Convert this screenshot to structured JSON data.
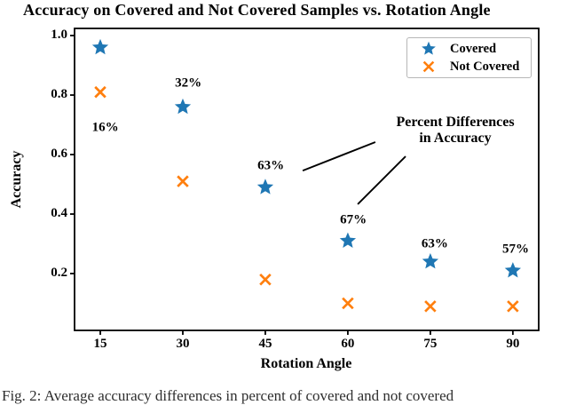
{
  "figure": {
    "title": "Accuracy on Covered and Not Covered Samples vs. Rotation Angle",
    "caption_fragment": "Fig. 2: Average accuracy differences in percent of covered and not covered"
  },
  "chart_data": {
    "type": "scatter",
    "title": "Accuracy on Covered and Not Covered Samples vs. Rotation Angle",
    "xlabel": "Rotation Angle",
    "ylabel": "Accuracy",
    "x_ticks": [
      15,
      30,
      45,
      60,
      75,
      90
    ],
    "y_ticks": [
      0.2,
      0.4,
      0.6,
      0.8,
      1.0
    ],
    "xlim": [
      10.32,
      94.7
    ],
    "ylim": [
      0.009,
      1.024
    ],
    "grid": false,
    "legend_position": "upper right",
    "series": [
      {
        "name": "Covered",
        "marker": "star",
        "color": "#1f77b4",
        "x": [
          15,
          30,
          45,
          60,
          75,
          90
        ],
        "y": [
          0.96,
          0.76,
          0.49,
          0.31,
          0.24,
          0.21
        ]
      },
      {
        "name": "Not Covered",
        "marker": "x",
        "color": "#ff7f0e",
        "x": [
          15,
          30,
          45,
          60,
          75,
          90
        ],
        "y": [
          0.81,
          0.51,
          0.18,
          0.1,
          0.09,
          0.09
        ]
      }
    ],
    "percent_difference_labels": [
      {
        "text": "16%",
        "x": 15.9,
        "y": 0.69
      },
      {
        "text": "32%",
        "x": 31.0,
        "y": 0.84
      },
      {
        "text": "63%",
        "x": 46.0,
        "y": 0.56
      },
      {
        "text": "67%",
        "x": 61.0,
        "y": 0.38
      },
      {
        "text": "63%",
        "x": 75.8,
        "y": 0.3
      },
      {
        "text": "57%",
        "x": 90.5,
        "y": 0.28
      }
    ],
    "annotation": {
      "line1": "Percent Differences",
      "line2": "in Accuracy",
      "pointer_lines": [
        {
          "x1": 65.0,
          "y1": 0.642,
          "x2": 51.8,
          "y2": 0.546
        },
        {
          "x1": 70.5,
          "y1": 0.594,
          "x2": 61.8,
          "y2": 0.433
        }
      ]
    }
  }
}
